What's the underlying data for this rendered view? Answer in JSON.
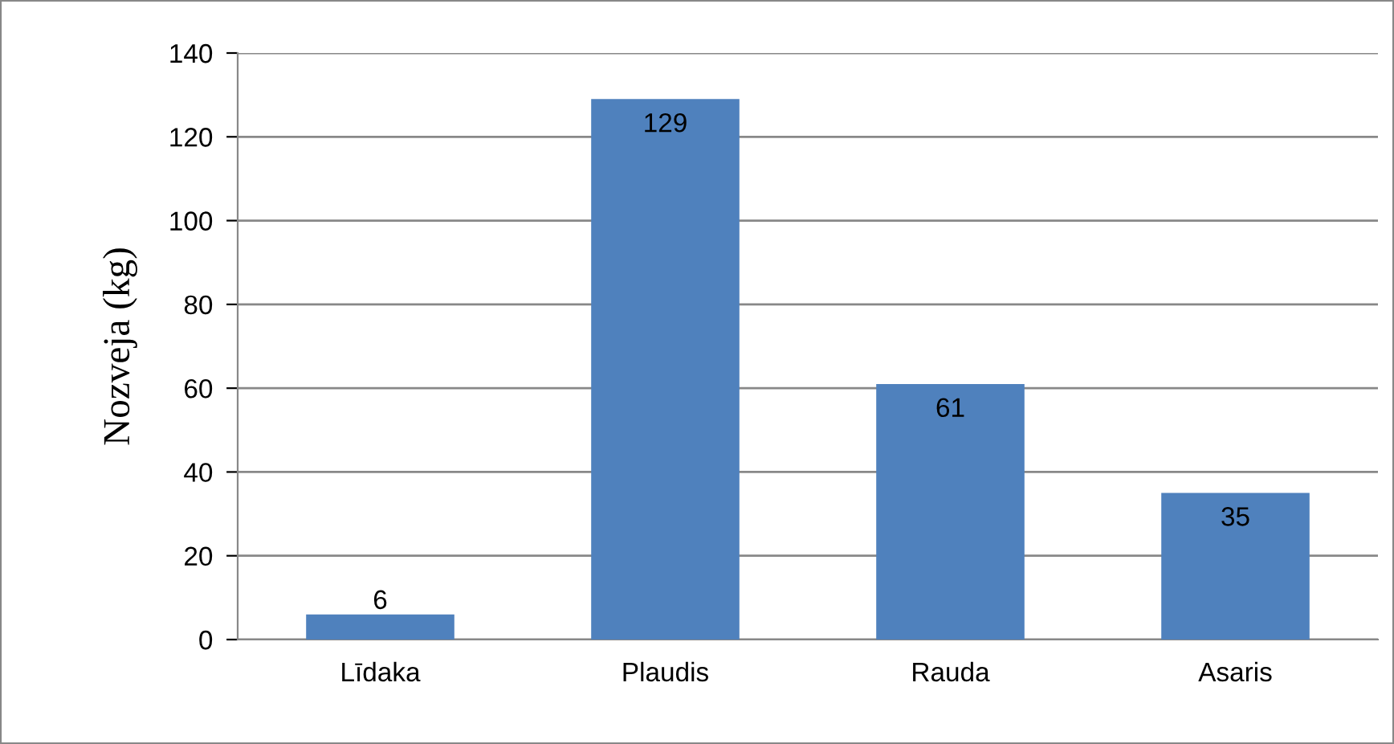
{
  "chart_data": {
    "type": "bar",
    "ylabel": "Nozveja (kg)",
    "categories": [
      "Līdaka",
      "Plaudis",
      "Rauda",
      "Asaris"
    ],
    "values": [
      6,
      129,
      61,
      35
    ],
    "color": "#4f81bd",
    "ylim": [
      0,
      140
    ],
    "yticks": [
      0,
      20,
      40,
      60,
      80,
      100,
      120,
      140
    ],
    "grid": "y",
    "data_labels": true
  }
}
